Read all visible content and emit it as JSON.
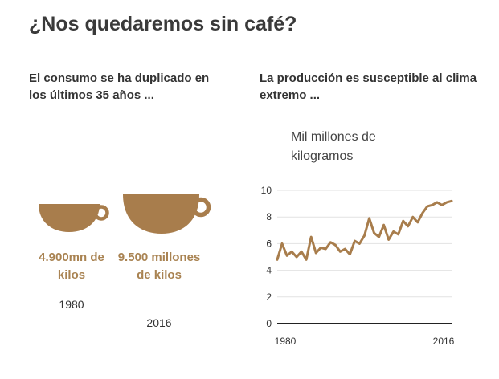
{
  "title": "¿Nos quedaremos sin café?",
  "left_panel": {
    "heading": "El consumo se ha duplicado en los últimos 35 años ...",
    "cups": [
      {
        "label": "4.900mn de kilos",
        "year": "1980",
        "value": 4900
      },
      {
        "label": "9.500 millones de kilos",
        "year": "2016",
        "value": 9500
      }
    ],
    "cup_color": "#a87d4c"
  },
  "right_panel": {
    "heading": "La producción es susceptible al clima extremo ...",
    "unit_label": "Mil millones de kilogramos"
  },
  "chart_data": {
    "type": "line",
    "x": [
      1980,
      1981,
      1982,
      1983,
      1984,
      1985,
      1986,
      1987,
      1988,
      1989,
      1990,
      1991,
      1992,
      1993,
      1994,
      1995,
      1996,
      1997,
      1998,
      1999,
      2000,
      2001,
      2002,
      2003,
      2004,
      2005,
      2006,
      2007,
      2008,
      2009,
      2010,
      2011,
      2012,
      2013,
      2014,
      2015,
      2016
    ],
    "series": [
      {
        "values": [
          4.8,
          6.0,
          5.1,
          5.4,
          5.0,
          5.4,
          4.8,
          6.5,
          5.3,
          5.7,
          5.6,
          6.1,
          5.9,
          5.4,
          5.6,
          5.2,
          6.2,
          6.0,
          6.6,
          7.9,
          6.8,
          6.5,
          7.4,
          6.3,
          6.9,
          6.7,
          7.7,
          7.3,
          8.0,
          7.6,
          8.3,
          8.8,
          8.9,
          9.1,
          8.9,
          9.1,
          9.2
        ]
      }
    ],
    "ylim": [
      0,
      10
    ],
    "yticks": [
      "0",
      "2",
      "4",
      "6",
      "8",
      "10"
    ],
    "xtick_labels": [
      "1980",
      "2016"
    ],
    "line_color": "#a87d4c",
    "grid": true
  }
}
